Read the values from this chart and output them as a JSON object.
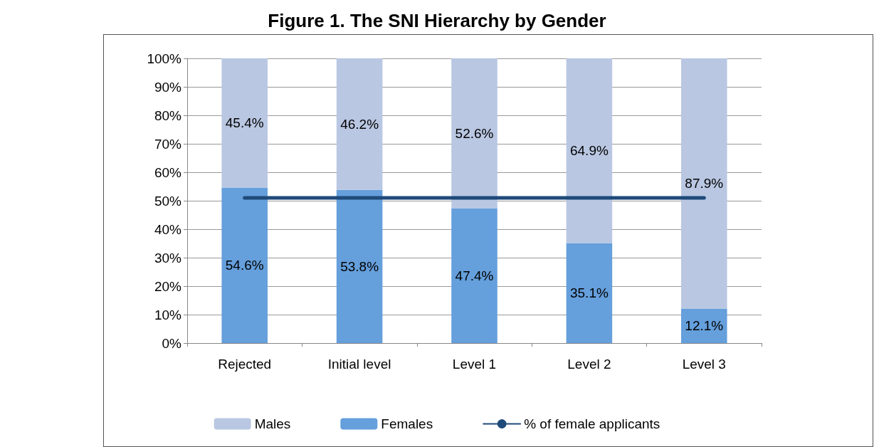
{
  "chart_data": {
    "type": "bar",
    "title": "Figure 1. The SNI Hierarchy by Gender",
    "categories": [
      "Rejected",
      "Initial level",
      "Level 1",
      "Level 2",
      "Level 3"
    ],
    "stacked": true,
    "series": [
      {
        "name": "Females",
        "color": "#659fdc",
        "values": [
          54.6,
          53.8,
          47.4,
          35.1,
          12.1
        ],
        "value_labels": [
          "54.6%",
          "53.8%",
          "47.4%",
          "35.1%",
          "12.1%"
        ]
      },
      {
        "name": "Males",
        "color": "#b9c7e2",
        "values": [
          45.4,
          46.2,
          52.6,
          64.9,
          87.9
        ],
        "value_labels": [
          "45.4%",
          "46.2%",
          "52.6%",
          "64.9%",
          "87.9%"
        ]
      },
      {
        "name": "% of female applicants",
        "type": "line",
        "color": "#1f4a7a",
        "values": [
          51,
          51,
          51,
          51,
          51
        ],
        "marker": "none"
      }
    ],
    "ylim": [
      0,
      100
    ],
    "yticks": [
      {
        "value": 0,
        "label": "0%"
      },
      {
        "value": 10,
        "label": "10%"
      },
      {
        "value": 20,
        "label": "20%"
      },
      {
        "value": 30,
        "label": "30%"
      },
      {
        "value": 40,
        "label": "40%"
      },
      {
        "value": 50,
        "label": "50%"
      },
      {
        "value": 60,
        "label": "60%"
      },
      {
        "value": 70,
        "label": "70%"
      },
      {
        "value": 80,
        "label": "80%"
      },
      {
        "value": 90,
        "label": "90%"
      },
      {
        "value": 100,
        "label": "100%"
      }
    ],
    "grid": "y",
    "legend": "bottom"
  }
}
